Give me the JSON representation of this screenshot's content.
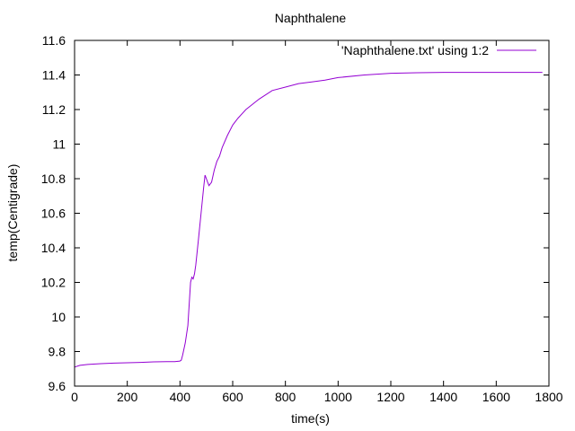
{
  "chart_data": {
    "type": "line",
    "title": "Naphthalene",
    "xlabel": "time(s)",
    "ylabel": "temp(Centigrade)",
    "xlim": [
      0,
      1800
    ],
    "ylim": [
      9.6,
      11.6
    ],
    "xticks": [
      0,
      200,
      400,
      600,
      800,
      1000,
      1200,
      1400,
      1600,
      1800
    ],
    "yticks": [
      9.6,
      9.8,
      10,
      10.2,
      10.4,
      10.6,
      10.8,
      11,
      11.2,
      11.4,
      11.6
    ],
    "xtick_labels": [
      "0",
      "200",
      "400",
      "600",
      "800",
      "1000",
      "1200",
      "1400",
      "1600",
      "1800"
    ],
    "ytick_labels": [
      "9.6",
      "9.8",
      "10",
      "10.2",
      "10.4",
      "10.6",
      "10.8",
      "11",
      "11.2",
      "11.4",
      "11.6"
    ],
    "grid": false,
    "legend_position": "top-right",
    "series": [
      {
        "name": "'Naphthalene.txt' using 1:2",
        "color": "#9400d3",
        "x": [
          0,
          20,
          50,
          100,
          150,
          200,
          250,
          300,
          350,
          380,
          400,
          405,
          410,
          420,
          430,
          440,
          445,
          450,
          455,
          460,
          470,
          480,
          490,
          495,
          500,
          505,
          510,
          520,
          530,
          540,
          550,
          560,
          580,
          600,
          620,
          650,
          700,
          750,
          800,
          850,
          900,
          950,
          1000,
          1100,
          1200,
          1300,
          1400,
          1500,
          1600,
          1700,
          1775
        ],
        "y": [
          9.71,
          9.72,
          9.725,
          9.73,
          9.733,
          9.735,
          9.737,
          9.74,
          9.742,
          9.742,
          9.745,
          9.75,
          9.78,
          9.85,
          9.95,
          10.2,
          10.23,
          10.22,
          10.25,
          10.3,
          10.45,
          10.6,
          10.75,
          10.82,
          10.8,
          10.78,
          10.76,
          10.78,
          10.85,
          10.9,
          10.93,
          10.98,
          11.05,
          11.11,
          11.15,
          11.2,
          11.26,
          11.31,
          11.33,
          11.35,
          11.36,
          11.37,
          11.385,
          11.4,
          11.41,
          11.413,
          11.415,
          11.415,
          11.415,
          11.415,
          11.415
        ]
      }
    ]
  }
}
